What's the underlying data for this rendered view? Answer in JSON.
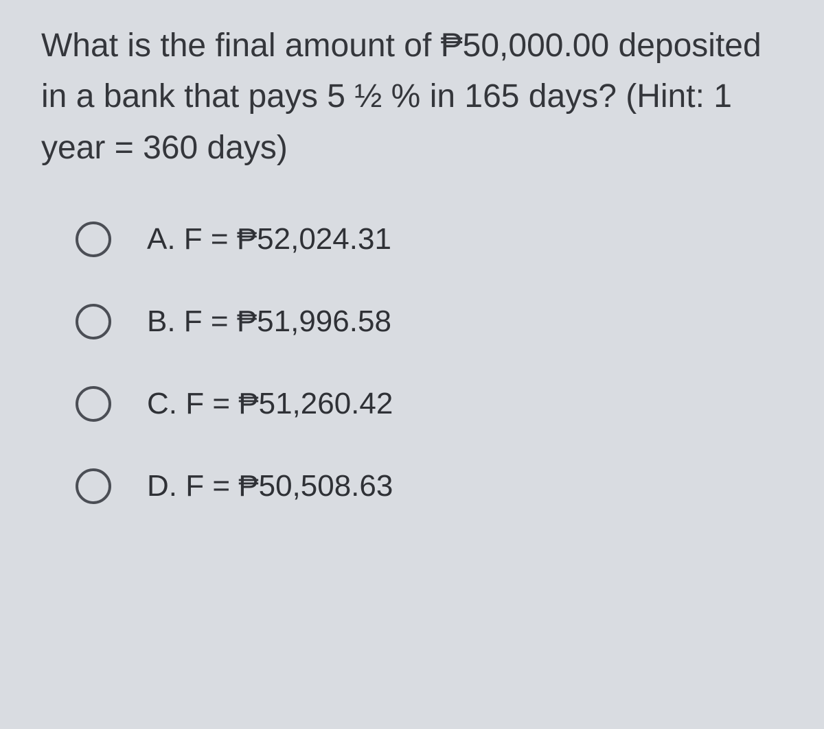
{
  "question": {
    "text": "What is the final amount of ₱50,000.00 deposited in a bank that pays 5 ½ % in 165 days? (Hint: 1 year = 360 days)",
    "text_color": "#34363b",
    "fontsize": 48
  },
  "options": [
    {
      "label": "A. F = ₱52,024.31"
    },
    {
      "label": "B. F = ₱51,996.58"
    },
    {
      "label": "C. F = ₱51,260.42"
    },
    {
      "label": "D. F = ₱50,508.63"
    }
  ],
  "styling": {
    "background_color": "#d9dce1",
    "option_fontsize": 44,
    "option_color": "#2f3136",
    "radio_border_color": "#4b4e55",
    "radio_size": 52
  }
}
